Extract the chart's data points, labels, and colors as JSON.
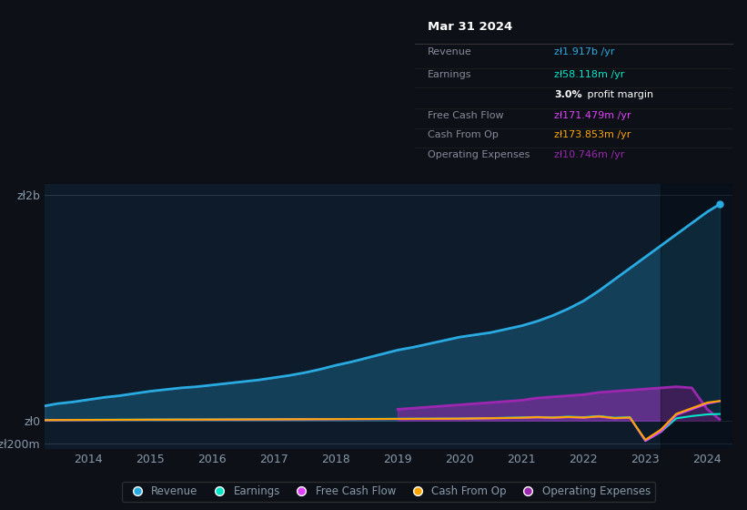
{
  "bg_color": "#0d1117",
  "plot_bg_color": "#0d1b2a",
  "grid_color": "#2a3a4a",
  "text_color": "#8899aa",
  "title_color": "#ffffff",
  "ylabel_2b": "zł2b",
  "ylabel_0": "zł0",
  "ylabel_neg200m": "-zł200m",
  "ylim": [
    -250000000,
    2100000000
  ],
  "xlim": [
    2013.3,
    2024.4
  ],
  "revenue_color": "#29abe2",
  "earnings_color": "#00e5c8",
  "fcf_color": "#e040fb",
  "cashfromop_color": "#ffa500",
  "opex_color": "#9c27b0",
  "tooltip_bg": "#0a0a0a",
  "tooltip_border": "#333333",
  "tooltip_title": "Mar 31 2024",
  "tooltip_items": [
    {
      "label": "Revenue",
      "value": "zł1.917b /yr",
      "color": "#29abe2"
    },
    {
      "label": "Earnings",
      "value": "zł58.118m /yr",
      "color": "#00e5c8"
    },
    {
      "label": "",
      "value": "3.0% profit margin",
      "color": "#ffffff"
    },
    {
      "label": "Free Cash Flow",
      "value": "zł171.479m /yr",
      "color": "#e040fb"
    },
    {
      "label": "Cash From Op",
      "value": "zł173.853m /yr",
      "color": "#ffa500"
    },
    {
      "label": "Operating Expenses",
      "value": "zł10.746m /yr",
      "color": "#9c27b0"
    }
  ],
  "legend_items": [
    {
      "label": "Revenue",
      "color": "#29abe2"
    },
    {
      "label": "Earnings",
      "color": "#00e5c8"
    },
    {
      "label": "Free Cash Flow",
      "color": "#e040fb"
    },
    {
      "label": "Cash From Op",
      "color": "#ffa500"
    },
    {
      "label": "Operating Expenses",
      "color": "#9c27b0"
    }
  ],
  "revenue_x": [
    2013.3,
    2013.5,
    2013.75,
    2014.0,
    2014.25,
    2014.5,
    2014.75,
    2015.0,
    2015.25,
    2015.5,
    2015.75,
    2016.0,
    2016.25,
    2016.5,
    2016.75,
    2017.0,
    2017.25,
    2017.5,
    2017.75,
    2018.0,
    2018.25,
    2018.5,
    2018.75,
    2019.0,
    2019.25,
    2019.5,
    2019.75,
    2020.0,
    2020.25,
    2020.5,
    2020.75,
    2021.0,
    2021.25,
    2021.5,
    2021.75,
    2022.0,
    2022.25,
    2022.5,
    2022.75,
    2023.0,
    2023.25,
    2023.5,
    2023.75,
    2024.0,
    2024.2
  ],
  "revenue_y": [
    130000000,
    150000000,
    165000000,
    185000000,
    205000000,
    220000000,
    240000000,
    260000000,
    275000000,
    290000000,
    300000000,
    315000000,
    330000000,
    345000000,
    360000000,
    380000000,
    400000000,
    425000000,
    455000000,
    490000000,
    520000000,
    555000000,
    590000000,
    625000000,
    650000000,
    680000000,
    710000000,
    740000000,
    760000000,
    780000000,
    810000000,
    840000000,
    880000000,
    930000000,
    990000000,
    1060000000,
    1150000000,
    1250000000,
    1350000000,
    1450000000,
    1550000000,
    1650000000,
    1750000000,
    1850000000,
    1917000000
  ],
  "earnings_x": [
    2013.3,
    2013.5,
    2014.0,
    2014.5,
    2015.0,
    2015.5,
    2016.0,
    2016.5,
    2017.0,
    2017.5,
    2018.0,
    2018.5,
    2019.0,
    2019.5,
    2020.0,
    2020.25,
    2020.5,
    2020.75,
    2021.0,
    2021.25,
    2021.5,
    2021.75,
    2022.0,
    2022.25,
    2022.5,
    2022.75,
    2023.0,
    2023.25,
    2023.5,
    2023.75,
    2024.0,
    2024.2
  ],
  "earnings_y": [
    5000000,
    6000000,
    7000000,
    8000000,
    9000000,
    9500000,
    10000000,
    11000000,
    12000000,
    13000000,
    14000000,
    15000000,
    16000000,
    17000000,
    18000000,
    20000000,
    22000000,
    25000000,
    28000000,
    32000000,
    28000000,
    35000000,
    30000000,
    40000000,
    25000000,
    30000000,
    -180000000,
    -100000000,
    20000000,
    40000000,
    55000000,
    58118000
  ],
  "fcf_x": [
    2013.3,
    2013.5,
    2014.0,
    2014.5,
    2015.0,
    2015.5,
    2016.0,
    2016.5,
    2017.0,
    2017.5,
    2018.0,
    2018.5,
    2019.0,
    2019.5,
    2020.0,
    2020.25,
    2020.5,
    2020.75,
    2021.0,
    2021.25,
    2021.5,
    2021.75,
    2022.0,
    2022.25,
    2022.5,
    2022.75,
    2023.0,
    2023.25,
    2023.5,
    2023.75,
    2024.0,
    2024.2
  ],
  "fcf_y": [
    3000000,
    4000000,
    5000000,
    6000000,
    7000000,
    7500000,
    8000000,
    9000000,
    10000000,
    11000000,
    12000000,
    13000000,
    14000000,
    15000000,
    16000000,
    18000000,
    20000000,
    22000000,
    24000000,
    28000000,
    24000000,
    30000000,
    25000000,
    35000000,
    20000000,
    25000000,
    -180000000,
    -100000000,
    50000000,
    100000000,
    150000000,
    171479000
  ],
  "cashfromop_x": [
    2013.3,
    2013.5,
    2014.0,
    2014.5,
    2015.0,
    2015.5,
    2016.0,
    2016.5,
    2017.0,
    2017.5,
    2018.0,
    2018.5,
    2019.0,
    2019.5,
    2020.0,
    2020.25,
    2020.5,
    2020.75,
    2021.0,
    2021.25,
    2021.5,
    2021.75,
    2022.0,
    2022.25,
    2022.5,
    2022.75,
    2023.0,
    2023.25,
    2023.5,
    2023.75,
    2024.0,
    2024.2
  ],
  "cashfromop_y": [
    4000000,
    5000000,
    6000000,
    7000000,
    8000000,
    8500000,
    9000000,
    10000000,
    11000000,
    12000000,
    13000000,
    14000000,
    15000000,
    16000000,
    17000000,
    19000000,
    21000000,
    23000000,
    25000000,
    30000000,
    26000000,
    32000000,
    27000000,
    37000000,
    22000000,
    27000000,
    -170000000,
    -80000000,
    60000000,
    110000000,
    160000000,
    173853000
  ],
  "opex_x": [
    2019.0,
    2019.25,
    2019.5,
    2019.75,
    2020.0,
    2020.25,
    2020.5,
    2020.75,
    2021.0,
    2021.25,
    2021.5,
    2021.75,
    2022.0,
    2022.25,
    2022.5,
    2022.75,
    2023.0,
    2023.25,
    2023.5,
    2023.75,
    2024.0,
    2024.2
  ],
  "opex_y": [
    100000000,
    110000000,
    120000000,
    130000000,
    140000000,
    150000000,
    160000000,
    170000000,
    180000000,
    200000000,
    210000000,
    220000000,
    230000000,
    250000000,
    260000000,
    270000000,
    280000000,
    290000000,
    300000000,
    290000000,
    100000000,
    10746000
  ]
}
